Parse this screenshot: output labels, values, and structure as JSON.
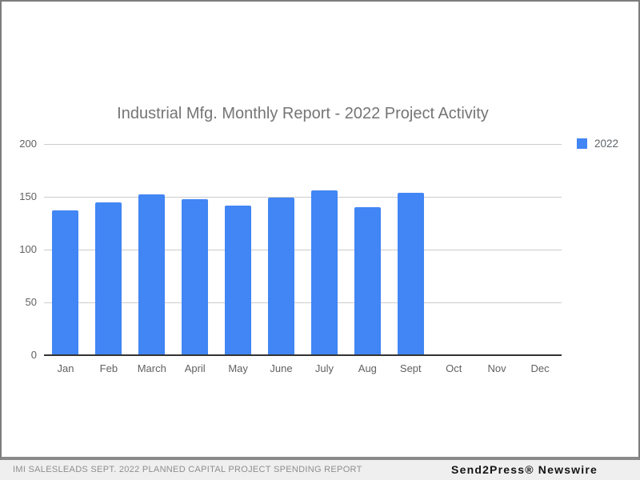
{
  "title": "Industrial Mfg. Monthly Report - 2022 Project Activity",
  "chart_data": {
    "type": "bar",
    "title": "Industrial Mfg. Monthly Report - 2022 Project Activity",
    "categories": [
      "Jan",
      "Feb",
      "March",
      "April",
      "May",
      "June",
      "July",
      "Aug",
      "Sept",
      "Oct",
      "Nov",
      "Dec"
    ],
    "series": [
      {
        "name": "2022",
        "color": "#4285f4",
        "values": [
          137,
          145,
          152,
          148,
          142,
          149,
          156,
          140,
          154,
          null,
          null,
          null
        ]
      }
    ],
    "xlabel": "",
    "ylabel": "",
    "ylim": [
      0,
      200
    ],
    "yticks": [
      0,
      50,
      100,
      150,
      200
    ],
    "grid": true,
    "legend_position": "top-right"
  },
  "legend": {
    "label": "2022",
    "color": "#4285f4"
  },
  "footer": {
    "caption": "IMI SALESLEADS SEPT. 2022 PLANNED CAPITAL PROJECT SPENDING REPORT",
    "brand": "Send2Press® Newswire"
  },
  "colors": {
    "bar": "#4285f4",
    "title_text": "#757575",
    "axis_text": "#616161",
    "gridline": "#cccccc",
    "baseline": "#333333",
    "frame_border": "#7d7d7d",
    "footer_bg": "#efefef",
    "footer_caption_text": "#8e8e8e",
    "footer_brand_text": "#141414"
  }
}
